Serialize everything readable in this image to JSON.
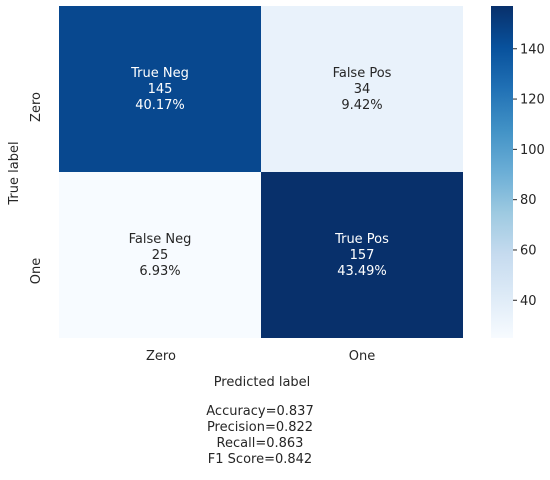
{
  "chart_data": {
    "type": "heatmap",
    "title": "",
    "xlabel": "Predicted label",
    "ylabel": "True label",
    "x_categories": [
      "Zero",
      "One"
    ],
    "y_categories": [
      "Zero",
      "One"
    ],
    "cells": [
      [
        {
          "name": "True Neg",
          "count": 145,
          "percent": "40.17%"
        },
        {
          "name": "False Pos",
          "count": 34,
          "percent": "9.42%"
        }
      ],
      [
        {
          "name": "False Neg",
          "count": 25,
          "percent": "6.93%"
        },
        {
          "name": "True Pos",
          "count": 157,
          "percent": "43.49%"
        }
      ]
    ],
    "colormap": "Blues",
    "colorbar": {
      "vmin": 25,
      "vmax": 157,
      "ticks": [
        40,
        60,
        80,
        100,
        120,
        140
      ],
      "placement": "right"
    },
    "grid": false
  },
  "metrics": {
    "accuracy": "Accuracy=0.837",
    "precision": "Precision=0.822",
    "recall": "Recall=0.863",
    "f1": "F1 Score=0.842"
  }
}
